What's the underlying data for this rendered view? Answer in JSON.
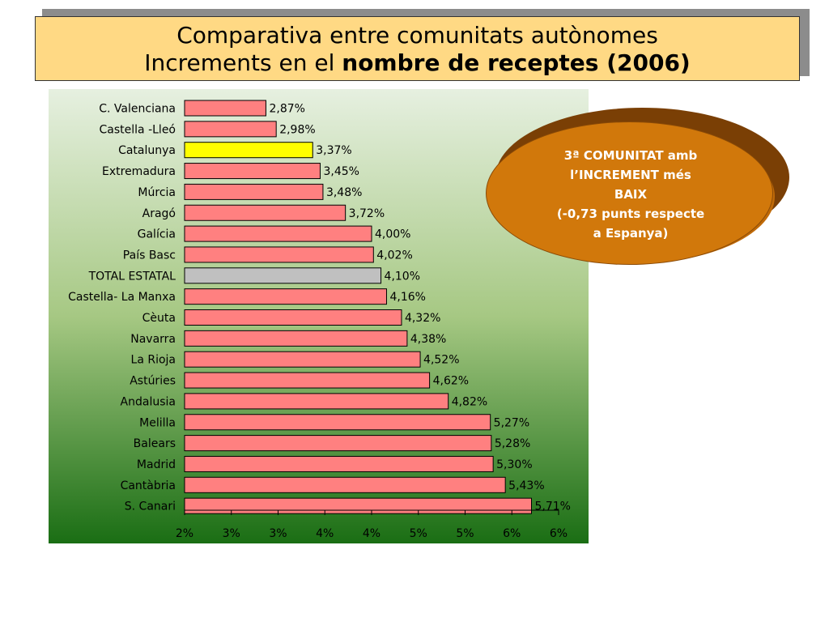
{
  "title": {
    "line1": "Comparativa entre comunitats autònomes",
    "line2_prefix": "Increments en el ",
    "line2_bold": "nombre de receptes (2006)"
  },
  "callout": {
    "lines": [
      "3ª COMUNITAT amb",
      "l’INCREMENT més",
      "BAIX",
      "(-0,73 punts respecte",
      "a Espanya)"
    ]
  },
  "colors": {
    "bar_default": "#ff8080",
    "bar_highlight": "#ffff00",
    "bar_total": "#c0c0c0",
    "callout": "#d1780b"
  },
  "chart_data": {
    "type": "bar",
    "orientation": "horizontal",
    "categories": [
      "C. Valenciana",
      "Castella -Lleó",
      "Catalunya",
      "Extremadura",
      "Múrcia",
      "Aragó",
      "Galícia",
      "País Basc",
      "TOTAL ESTATAL",
      "Castella- La Manxa",
      "Cèuta",
      "Navarra",
      "La Rioja",
      "Astúries",
      "Andalusia",
      "Melilla",
      "Balears",
      "Madrid",
      "Cantàbria",
      "S. Canari"
    ],
    "values": [
      2.87,
      2.98,
      3.37,
      3.45,
      3.48,
      3.72,
      4.0,
      4.02,
      4.1,
      4.16,
      4.32,
      4.38,
      4.52,
      4.62,
      4.82,
      5.27,
      5.28,
      5.3,
      5.43,
      5.71
    ],
    "data_labels": [
      "2,87%",
      "2,98%",
      "3,37%",
      "3,45%",
      "3,48%",
      "3,72%",
      "4,00%",
      "4,02%",
      "4,10%",
      "4,16%",
      "4,32%",
      "4,38%",
      "4,52%",
      "4,62%",
      "4,82%",
      "5,27%",
      "5,28%",
      "5,30%",
      "5,43%",
      "5,71%"
    ],
    "highlight": {
      "Catalunya": "bar_highlight",
      "TOTAL ESTATAL": "bar_total"
    },
    "xlim": [
      2.0,
      6.0
    ],
    "xticks": [
      2.0,
      2.5,
      3.0,
      3.5,
      4.0,
      4.5,
      5.0,
      5.5,
      6.0
    ],
    "xtick_labels": [
      "2%",
      "3%",
      "3%",
      "4%",
      "4%",
      "5%",
      "5%",
      "6%",
      "6%"
    ],
    "grid": false,
    "legend": "none"
  }
}
